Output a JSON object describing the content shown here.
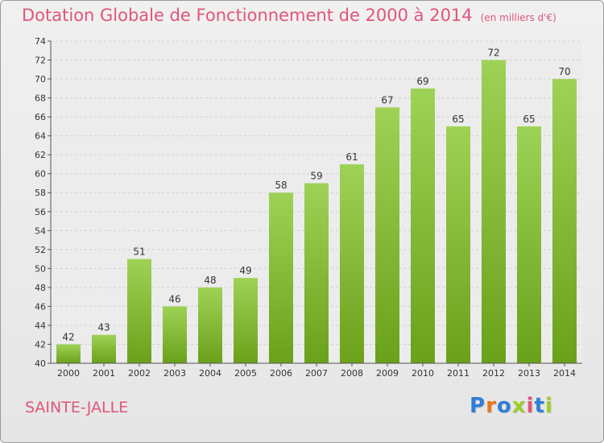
{
  "header": {
    "title": "Dotation Globale de Fonctionnement de 2000 à 2014",
    "subtitle": "(en milliers d'€)"
  },
  "commune": "SAINTE-JALLE",
  "logo": {
    "text": "Proxiti",
    "letter_colors": [
      "#2f7fd6",
      "#e8761c",
      "#2f7fd6",
      "#9ccc2c",
      "#e0567a",
      "#2f7fd6",
      "#9ccc2c"
    ]
  },
  "colors": {
    "bar_top": "#9ed256",
    "bar_bottom": "#6aa11a",
    "accent": "#e0567a"
  },
  "chart_data": {
    "type": "bar",
    "title": "Dotation Globale de Fonctionnement de 2000 à 2014",
    "subtitle": "(en milliers d'€)",
    "categories": [
      "2000",
      "2001",
      "2002",
      "2003",
      "2004",
      "2005",
      "2006",
      "2007",
      "2008",
      "2009",
      "2010",
      "2011",
      "2012",
      "2013",
      "2014"
    ],
    "values": [
      42,
      43,
      51,
      46,
      48,
      49,
      58,
      59,
      61,
      67,
      69,
      65,
      72,
      65,
      70
    ],
    "ylim": [
      40,
      74
    ],
    "yticks": [
      40,
      42,
      44,
      46,
      48,
      50,
      52,
      54,
      56,
      58,
      60,
      62,
      64,
      66,
      68,
      70,
      72,
      74
    ],
    "grid": true,
    "xlabel": "",
    "ylabel": ""
  }
}
